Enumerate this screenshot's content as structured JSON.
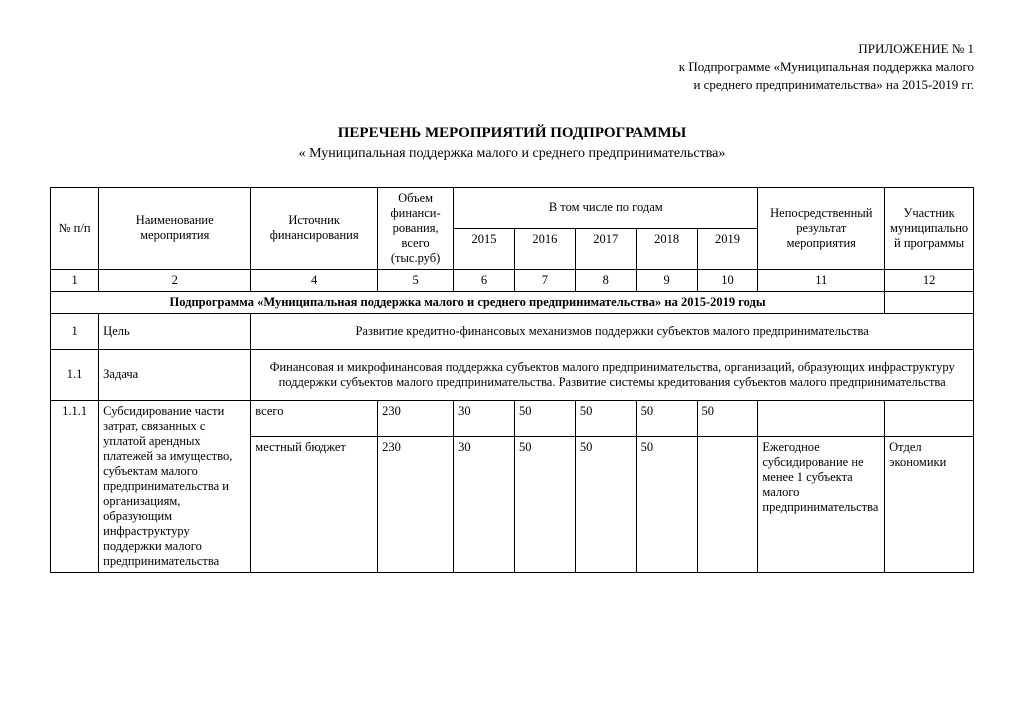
{
  "appendix": {
    "line1": "ПРИЛОЖЕНИЕ № 1",
    "line2": "к Подпрограмме «Муниципальная поддержка малого",
    "line3": "и среднего предпринимательства» на 2015-2019 гг."
  },
  "title": "ПЕРЕЧЕНЬ МЕРОПРИЯТИЙ ПОДПРОГРАММЫ",
  "subtitle": "« Муниципальная поддержка малого и среднего предпринимательства»",
  "header": {
    "num": "№ п/п",
    "name": "Наименование мероприятия",
    "source": "Источник финансирования",
    "volume": "Объем финанси-рования, всего (тыс.руб)",
    "byYears": "В том числе по годам",
    "y2015": "2015",
    "y2016": "2016",
    "y2017": "2017",
    "y2018": "2018",
    "y2019": "2019",
    "result": "Непосредственный результат мероприятия",
    "participant": "Участник муниципальной программы"
  },
  "colnums": {
    "c1": "1",
    "c2": "2",
    "c4": "4",
    "c5": "5",
    "c6": "6",
    "c7": "7",
    "c8": "8",
    "c9": "9",
    "c10": "10",
    "c11": "11",
    "c12": "12"
  },
  "subprogram_heading": "Подпрограмма «Муниципальная поддержка малого и среднего предпринимательства» на 2015-2019 годы",
  "row_goal": {
    "num": "1",
    "label": "Цель",
    "text": "Развитие кредитно-финансовых механизмов поддержки субъектов малого предпринимательства"
  },
  "row_task": {
    "num": "1.1",
    "label": "Задача",
    "text": "Финансовая и микрофинансовая поддержка субъектов малого предпринимательства, организаций, образующих инфраструктуру поддержки субъектов малого предпринимательства. Развитие системы кредитования субъектов малого предпринимательства"
  },
  "row_item": {
    "num": "1.1.1",
    "name": "Субсидирование части затрат, связанных с уплатой арендных платежей за имущество, субъектам малого предпринимательства и организациям, образующим инфраструктуру поддержки малого предпринимательства",
    "source_total": "всего",
    "source_local": "местный бюджет",
    "total_vol": "230",
    "total_y2015": "30",
    "total_y2016": "50",
    "total_y2017": "50",
    "total_y2018": "50",
    "total_y2019": "50",
    "local_vol": "230",
    "local_y2015": "30",
    "local_y2016": "50",
    "local_y2017": "50",
    "local_y2018": "50",
    "result": "Ежегодное субсидирование не менее 1 субъекта малого предпринимательства",
    "participant": "Отдел экономики"
  }
}
